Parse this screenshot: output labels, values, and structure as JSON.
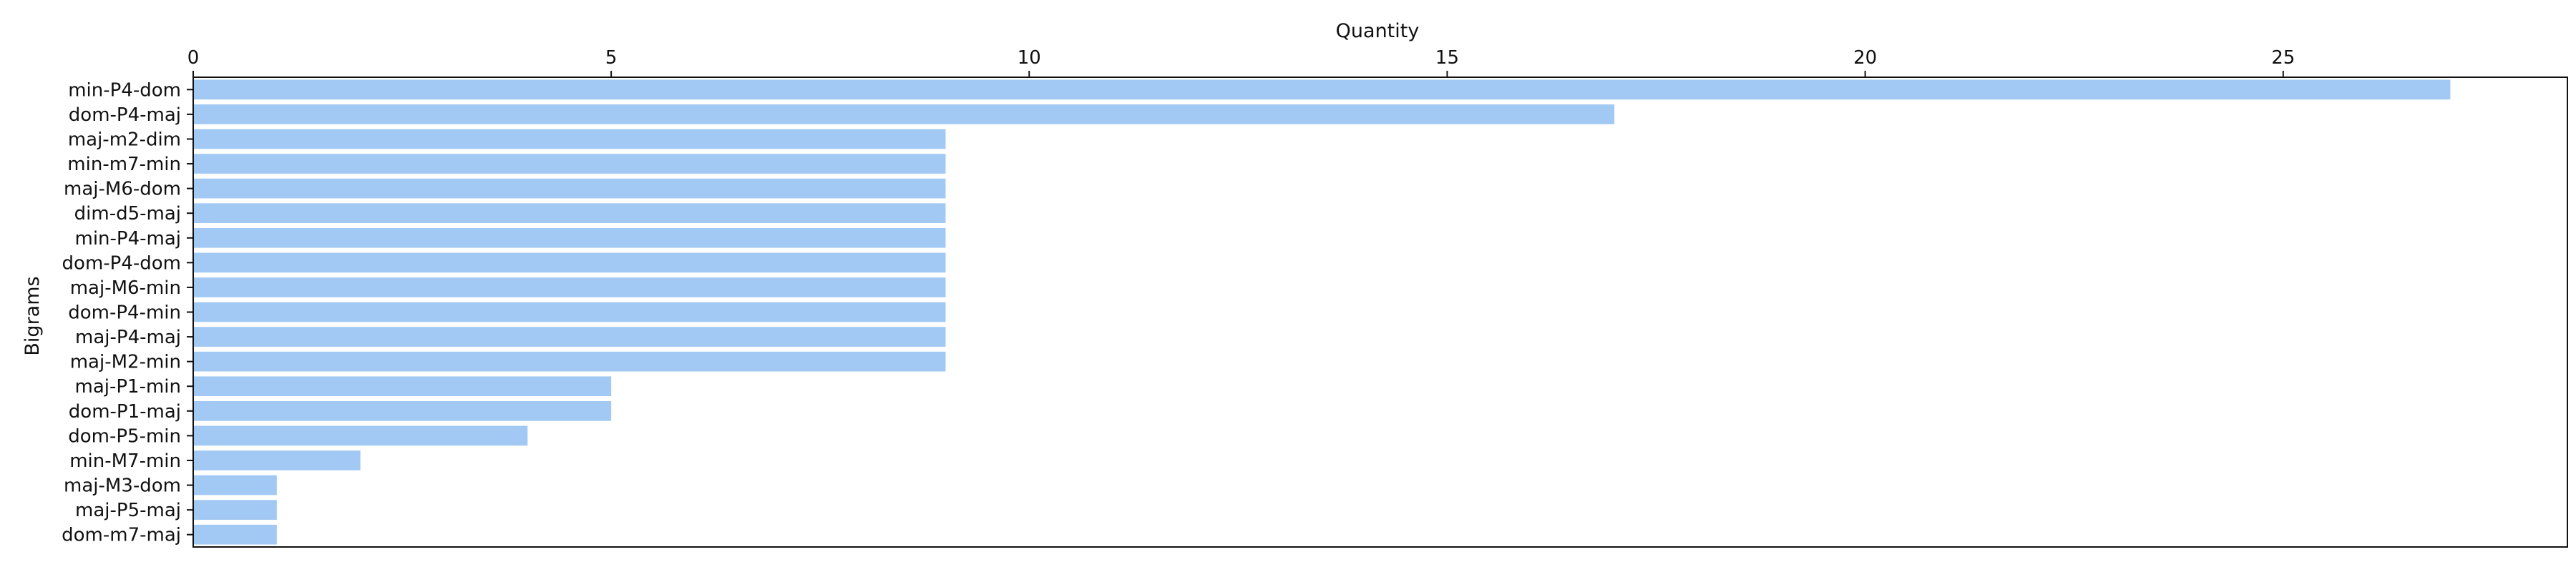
{
  "chart_data": {
    "type": "bar",
    "orientation": "horizontal",
    "xlabel": "Quantity",
    "ylabel": "Bigrams",
    "x_axis_position": "top",
    "xlim": [
      0,
      28.4
    ],
    "xticks": [
      0,
      5,
      10,
      15,
      20,
      25
    ],
    "grid": false,
    "bar_color": "#a1c9f4",
    "categories": [
      "min-P4-dom",
      "dom-P4-maj",
      "maj-m2-dim",
      "min-m7-min",
      "maj-M6-dom",
      "dim-d5-maj",
      "min-P4-maj",
      "dom-P4-dom",
      "maj-M6-min",
      "dom-P4-min",
      "maj-P4-maj",
      "maj-M2-min",
      "maj-P1-min",
      "dom-P1-maj",
      "dom-P5-min",
      "min-M7-min",
      "maj-M3-dom",
      "maj-P5-maj",
      "dom-m7-maj"
    ],
    "values": [
      27,
      17,
      9,
      9,
      9,
      9,
      9,
      9,
      9,
      9,
      9,
      9,
      5,
      5,
      4,
      2,
      1,
      1,
      1
    ]
  }
}
